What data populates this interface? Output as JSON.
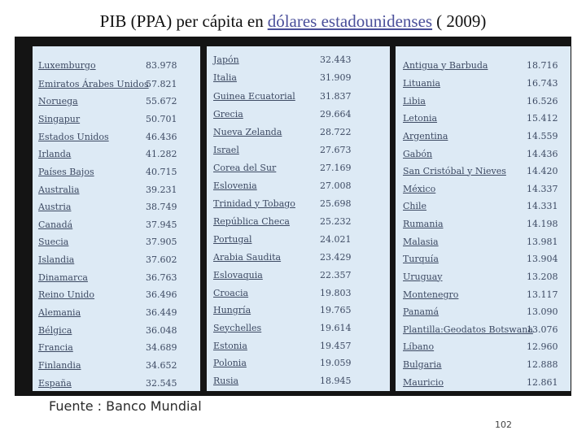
{
  "title": {
    "prefix": "PIB (PPA) per cápita en",
    "link": "dólares estadounidenses",
    "suffix": "( 2009)"
  },
  "columns": [
    [
      {
        "country": "Luxemburgo",
        "value": "83.978"
      },
      {
        "country": "Emiratos Árabes Unidos",
        "value": "57.821"
      },
      {
        "country": "Noruega",
        "value": "55.672"
      },
      {
        "country": "Singapur",
        "value": "50.701"
      },
      {
        "country": "Estados Unidos",
        "value": "46.436"
      },
      {
        "country": "Irlanda",
        "value": "41.282"
      },
      {
        "country": "Países Bajos",
        "value": "40.715"
      },
      {
        "country": "Australia",
        "value": "39.231"
      },
      {
        "country": "Austria",
        "value": "38.749"
      },
      {
        "country": "Canadá",
        "value": "37.945"
      },
      {
        "country": "Suecia",
        "value": "37.905"
      },
      {
        "country": "Islandia",
        "value": "37.602"
      },
      {
        "country": "Dinamarca",
        "value": "36.763"
      },
      {
        "country": "Reino Unido",
        "value": "36.496"
      },
      {
        "country": "Alemania",
        "value": "36.449"
      },
      {
        "country": "Bélgica",
        "value": "36.048"
      },
      {
        "country": "Francia",
        "value": "34.689"
      },
      {
        "country": "Finlandia",
        "value": "34.652"
      },
      {
        "country": "España",
        "value": "32.545"
      }
    ],
    [
      {
        "country": "Japón",
        "value": "32.443"
      },
      {
        "country": "Italia",
        "value": "31.909"
      },
      {
        "country": "Guinea Ecuatorial",
        "value": "31.837"
      },
      {
        "country": "Grecia",
        "value": "29.664"
      },
      {
        "country": "Nueva Zelanda",
        "value": "28.722"
      },
      {
        "country": "Israel",
        "value": "27.673"
      },
      {
        "country": "Corea del Sur",
        "value": "27.169"
      },
      {
        "country": "Eslovenia",
        "value": "27.008"
      },
      {
        "country": "Trinidad y Tobago",
        "value": "25.698"
      },
      {
        "country": "República Checa",
        "value": "25.232"
      },
      {
        "country": "Portugal",
        "value": "24.021"
      },
      {
        "country": "Arabia Saudita",
        "value": "23.429"
      },
      {
        "country": "Eslovaquia",
        "value": "22.357"
      },
      {
        "country": "Croacia",
        "value": "19.803"
      },
      {
        "country": "Hungría",
        "value": "19.765"
      },
      {
        "country": "Seychelles",
        "value": "19.614"
      },
      {
        "country": "Estonia",
        "value": "19.457"
      },
      {
        "country": "Polonia",
        "value": "19.059"
      },
      {
        "country": "Rusia",
        "value": "18.945"
      }
    ],
    [
      {
        "country": "Antigua y Barbuda",
        "value": "18.716"
      },
      {
        "country": "Lituania",
        "value": "16.743"
      },
      {
        "country": "Libia",
        "value": "16.526"
      },
      {
        "country": "Letonia",
        "value": "15.412"
      },
      {
        "country": "Argentina",
        "value": "14.559"
      },
      {
        "country": "Gabón",
        "value": "14.436"
      },
      {
        "country": "San Cristóbal y Nieves",
        "value": "14.420"
      },
      {
        "country": "México",
        "value": "14.337"
      },
      {
        "country": "Chile",
        "value": "14.331"
      },
      {
        "country": "Rumania",
        "value": "14.198"
      },
      {
        "country": "Malasia",
        "value": "13.981"
      },
      {
        "country": "Turquía",
        "value": "13.904"
      },
      {
        "country": "Uruguay",
        "value": "13.208"
      },
      {
        "country": "Montenegro",
        "value": "13.117"
      },
      {
        "country": "Panamá",
        "value": "13.090"
      },
      {
        "country": "Plantilla:Geodatos Botswana",
        "value": "13.076"
      },
      {
        "country": "Líbano",
        "value": "12.960"
      },
      {
        "country": "Bulgaria",
        "value": "12.888"
      },
      {
        "country": "Mauricio",
        "value": "12.861"
      }
    ]
  ],
  "source": "Fuente : Banco Mundial",
  "page_number": "102"
}
